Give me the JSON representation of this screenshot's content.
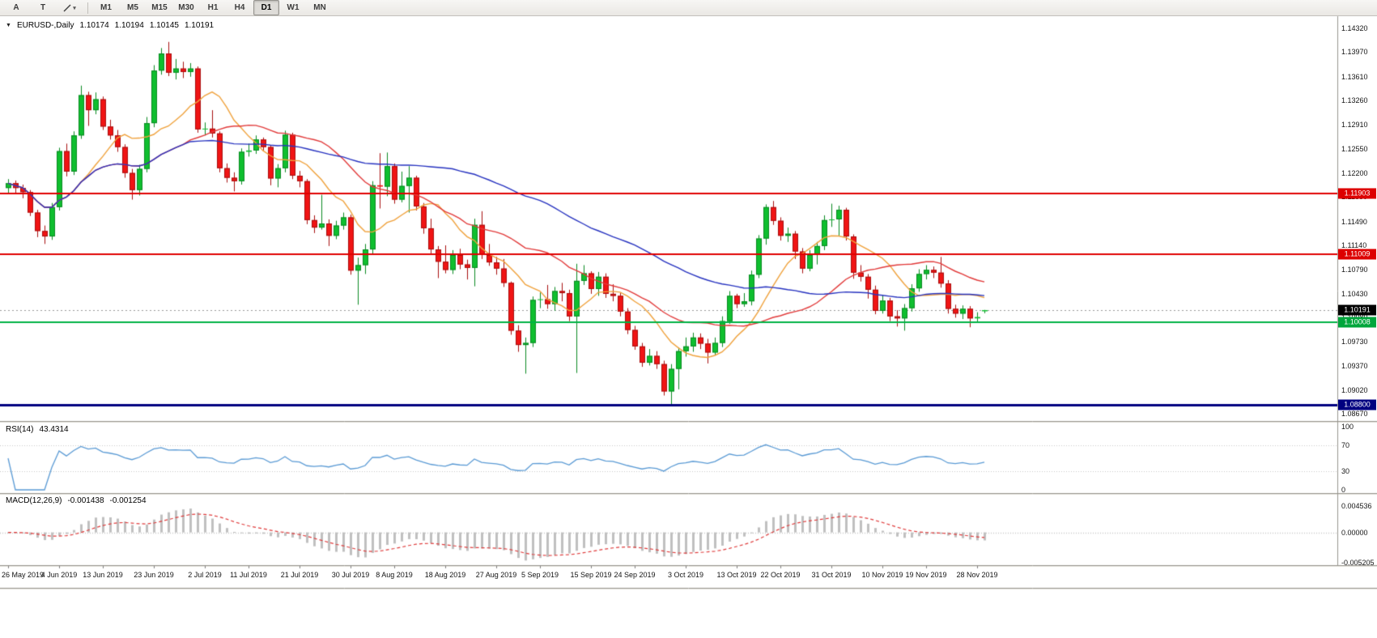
{
  "toolbar": {
    "tools": [
      {
        "name": "cursor-tool",
        "label": "A"
      },
      {
        "name": "text-tool",
        "label": "T"
      },
      {
        "name": "objects-tool",
        "icon": "trendline-icon",
        "dropdown": true
      }
    ],
    "timeframes": [
      "M1",
      "M5",
      "M15",
      "M30",
      "H1",
      "H4",
      "D1",
      "W1",
      "MN"
    ],
    "active_timeframe": "D1"
  },
  "icons": {
    "symbol_marker": "▼",
    "dropdown_arrow": "▾"
  },
  "chart": {
    "title": {
      "symbol": "EURUSD-,Daily",
      "open": "1.10174",
      "high": "1.10194",
      "low": "1.10145",
      "close": "1.10191"
    },
    "price_axis": [
      "1.14320",
      "1.13970",
      "1.13610",
      "1.13260",
      "1.12910",
      "1.12550",
      "1.12200",
      "1.11850",
      "1.11490",
      "1.11140",
      "1.10790",
      "1.10430",
      "1.10080",
      "1.09730",
      "1.09370",
      "1.09020",
      "1.08670"
    ],
    "hlines": [
      {
        "price": 1.11903,
        "label": "1.11903",
        "color": "#e00000",
        "badge": "#dd0000",
        "width": 2
      },
      {
        "price": 1.11009,
        "label": "1.11009",
        "color": "#e00000",
        "badge": "#dd0000",
        "width": 2
      },
      {
        "price": 1.10008,
        "label": "1.10008",
        "color": "#00b244",
        "badge": "#00a63c",
        "width": 2
      },
      {
        "price": 1.088,
        "label": "1.08800",
        "color": "#000080",
        "badge": "#000080",
        "width": 3
      }
    ],
    "current_price": {
      "price": 1.10191,
      "label": "1.10191",
      "badge": "#000000",
      "line_color": "#9a9a9a"
    }
  },
  "chart_data": {
    "type": "candlestick",
    "symbol": "EURUSD",
    "period": "Daily",
    "ylim": [
      1.0859,
      1.14414
    ],
    "bull_color": "#0fbf2f",
    "bear_color": "#f01414",
    "moving_averages": [
      {
        "name": "ma-fast",
        "type": "sma",
        "period": 10,
        "color": "#f0a23c"
      },
      {
        "name": "ma-medium",
        "type": "sma",
        "period": 25,
        "color": "#e23b3b"
      },
      {
        "name": "ma-slow",
        "type": "sma",
        "period": 55,
        "color": "#2733c0"
      }
    ],
    "candles": [
      [
        1.1198,
        1.1211,
        1.1189,
        1.1205
      ],
      [
        1.1205,
        1.1209,
        1.1189,
        1.1198
      ],
      [
        1.1198,
        1.1203,
        1.1183,
        1.1192
      ],
      [
        1.1192,
        1.1195,
        1.1157,
        1.1162
      ],
      [
        1.1162,
        1.1166,
        1.1126,
        1.1135
      ],
      [
        1.1135,
        1.1143,
        1.1116,
        1.1127
      ],
      [
        1.1127,
        1.1176,
        1.1122,
        1.117
      ],
      [
        1.117,
        1.1257,
        1.1165,
        1.1252
      ],
      [
        1.1252,
        1.1263,
        1.1215,
        1.1222
      ],
      [
        1.1222,
        1.1281,
        1.1217,
        1.1275
      ],
      [
        1.1275,
        1.1348,
        1.127,
        1.1334
      ],
      [
        1.1334,
        1.1339,
        1.1289,
        1.1312
      ],
      [
        1.1312,
        1.1338,
        1.1306,
        1.1328
      ],
      [
        1.1328,
        1.1332,
        1.1283,
        1.1288
      ],
      [
        1.1288,
        1.1298,
        1.1269,
        1.1275
      ],
      [
        1.1275,
        1.1283,
        1.1251,
        1.1258
      ],
      [
        1.1258,
        1.1262,
        1.1213,
        1.122
      ],
      [
        1.122,
        1.1226,
        1.1181,
        1.1195
      ],
      [
        1.1195,
        1.1232,
        1.1187,
        1.1226
      ],
      [
        1.1226,
        1.1302,
        1.1221,
        1.1293
      ],
      [
        1.1293,
        1.1378,
        1.1287,
        1.137
      ],
      [
        1.137,
        1.1403,
        1.1364,
        1.1395
      ],
      [
        1.1395,
        1.1412,
        1.1362,
        1.1367
      ],
      [
        1.1367,
        1.1387,
        1.1357,
        1.1373
      ],
      [
        1.1373,
        1.1383,
        1.1359,
        1.1368
      ],
      [
        1.1368,
        1.1381,
        1.1361,
        1.1373
      ],
      [
        1.1373,
        1.1376,
        1.1279,
        1.1284
      ],
      [
        1.1284,
        1.1294,
        1.1275,
        1.1285
      ],
      [
        1.1285,
        1.1312,
        1.1272,
        1.1278
      ],
      [
        1.1278,
        1.1281,
        1.1221,
        1.1227
      ],
      [
        1.1227,
        1.1234,
        1.1206,
        1.1213
      ],
      [
        1.1213,
        1.1221,
        1.1193,
        1.1208
      ],
      [
        1.1208,
        1.1256,
        1.1203,
        1.1251
      ],
      [
        1.1251,
        1.1263,
        1.1244,
        1.1253
      ],
      [
        1.1253,
        1.1275,
        1.1248,
        1.1269
      ],
      [
        1.1269,
        1.1272,
        1.1253,
        1.1258
      ],
      [
        1.1258,
        1.1261,
        1.1202,
        1.1212
      ],
      [
        1.1212,
        1.1233,
        1.1199,
        1.1227
      ],
      [
        1.1227,
        1.1282,
        1.1221,
        1.1276
      ],
      [
        1.1276,
        1.1279,
        1.1211,
        1.1216
      ],
      [
        1.1216,
        1.1223,
        1.1199,
        1.1208
      ],
      [
        1.1208,
        1.1211,
        1.1145,
        1.1151
      ],
      [
        1.1151,
        1.1158,
        1.1132,
        1.114
      ],
      [
        1.114,
        1.1188,
        1.1137,
        1.1146
      ],
      [
        1.1146,
        1.1152,
        1.1113,
        1.1128
      ],
      [
        1.1128,
        1.115,
        1.1123,
        1.1143
      ],
      [
        1.1143,
        1.1162,
        1.1137,
        1.1155
      ],
      [
        1.1155,
        1.1159,
        1.1071,
        1.1077
      ],
      [
        1.1077,
        1.1096,
        1.1027,
        1.1085
      ],
      [
        1.1085,
        1.1116,
        1.1072,
        1.1108
      ],
      [
        1.1108,
        1.1208,
        1.1102,
        1.1202
      ],
      [
        1.1202,
        1.1249,
        1.1168,
        1.12
      ],
      [
        1.12,
        1.125,
        1.1186,
        1.123
      ],
      [
        1.123,
        1.1234,
        1.1175,
        1.1181
      ],
      [
        1.1181,
        1.1222,
        1.1177,
        1.1201
      ],
      [
        1.1201,
        1.123,
        1.1162,
        1.1213
      ],
      [
        1.1213,
        1.1216,
        1.1165,
        1.1171
      ],
      [
        1.1171,
        1.1176,
        1.1131,
        1.1139
      ],
      [
        1.1139,
        1.1153,
        1.1102,
        1.1108
      ],
      [
        1.1108,
        1.1113,
        1.1066,
        1.109
      ],
      [
        1.109,
        1.1114,
        1.1073,
        1.1078
      ],
      [
        1.1078,
        1.1107,
        1.1072,
        1.11
      ],
      [
        1.11,
        1.1109,
        1.1079,
        1.1086
      ],
      [
        1.1086,
        1.1093,
        1.1064,
        1.1081
      ],
      [
        1.1081,
        1.1153,
        1.1054,
        1.1144
      ],
      [
        1.1144,
        1.1164,
        1.1094,
        1.11
      ],
      [
        1.11,
        1.1116,
        1.1084,
        1.1089
      ],
      [
        1.1089,
        1.1097,
        1.1071,
        1.108
      ],
      [
        1.108,
        1.1094,
        1.1053,
        1.1059
      ],
      [
        1.1059,
        1.1061,
        1.0983,
        1.0989
      ],
      [
        1.0989,
        1.0997,
        1.0958,
        1.0968
      ],
      [
        1.0968,
        1.0979,
        1.0926,
        1.0971
      ],
      [
        1.0971,
        1.1039,
        1.0965,
        1.1034
      ],
      [
        1.1034,
        1.1045,
        1.1022,
        1.1035
      ],
      [
        1.1035,
        1.1056,
        1.1021,
        1.1028
      ],
      [
        1.1028,
        1.1053,
        1.1018,
        1.1047
      ],
      [
        1.1047,
        1.1059,
        1.1032,
        1.1044
      ],
      [
        1.1044,
        1.1049,
        1.1003,
        1.101
      ],
      [
        1.101,
        1.1087,
        1.0927,
        1.1062
      ],
      [
        1.1062,
        1.1085,
        1.1056,
        1.1073
      ],
      [
        1.1073,
        1.1076,
        1.1043,
        1.105
      ],
      [
        1.105,
        1.1075,
        1.104,
        1.1068
      ],
      [
        1.1068,
        1.1073,
        1.1037,
        1.1043
      ],
      [
        1.1043,
        1.1057,
        1.1032,
        1.104
      ],
      [
        1.104,
        1.1044,
        1.101,
        1.1017
      ],
      [
        1.1017,
        1.1022,
        1.0984,
        1.099
      ],
      [
        1.099,
        1.0996,
        1.0961,
        1.0966
      ],
      [
        1.0966,
        1.0971,
        1.0936,
        1.0942
      ],
      [
        1.0942,
        1.0962,
        1.0938,
        1.0952
      ],
      [
        1.0952,
        1.0959,
        1.0933,
        1.094
      ],
      [
        1.094,
        1.0945,
        1.0894,
        1.09
      ],
      [
        1.09,
        1.094,
        1.0879,
        1.0933
      ],
      [
        1.0933,
        1.0964,
        1.0903,
        1.0959
      ],
      [
        1.0959,
        1.0979,
        1.0951,
        1.0966
      ],
      [
        1.0966,
        1.0986,
        1.0958,
        1.0979
      ],
      [
        1.0979,
        1.0985,
        1.0962,
        1.097
      ],
      [
        1.097,
        1.0977,
        1.0941,
        1.0957
      ],
      [
        1.0957,
        1.0979,
        1.0953,
        1.0971
      ],
      [
        1.0971,
        1.101,
        1.0965,
        1.1003
      ],
      [
        1.1003,
        1.1047,
        1.0999,
        1.104
      ],
      [
        1.104,
        1.1043,
        1.1022,
        1.1028
      ],
      [
        1.1028,
        1.1044,
        1.1024,
        1.1032
      ],
      [
        1.1032,
        1.1077,
        1.1026,
        1.1071
      ],
      [
        1.1071,
        1.1129,
        1.1066,
        1.1124
      ],
      [
        1.1124,
        1.1174,
        1.1115,
        1.117
      ],
      [
        1.117,
        1.1179,
        1.1144,
        1.115
      ],
      [
        1.115,
        1.1155,
        1.1121,
        1.1128
      ],
      [
        1.1128,
        1.114,
        1.1119,
        1.1131
      ],
      [
        1.1131,
        1.1135,
        1.1094,
        1.1105
      ],
      [
        1.1105,
        1.111,
        1.1073,
        1.108
      ],
      [
        1.108,
        1.1107,
        1.1076,
        1.11
      ],
      [
        1.11,
        1.1119,
        1.1086,
        1.1113
      ],
      [
        1.1113,
        1.1158,
        1.1107,
        1.1151
      ],
      [
        1.1151,
        1.1175,
        1.1141,
        1.1152
      ],
      [
        1.1152,
        1.1172,
        1.1128,
        1.1166
      ],
      [
        1.1166,
        1.1169,
        1.1121,
        1.1127
      ],
      [
        1.1127,
        1.113,
        1.1065,
        1.1074
      ],
      [
        1.1074,
        1.1085,
        1.1061,
        1.1068
      ],
      [
        1.1068,
        1.1072,
        1.1036,
        1.1049
      ],
      [
        1.1049,
        1.1055,
        1.1013,
        1.1018
      ],
      [
        1.1018,
        1.1041,
        1.1014,
        1.1033
      ],
      [
        1.1033,
        1.1037,
        1.1003,
        1.101
      ],
      [
        1.101,
        1.1019,
        1.0995,
        1.1007
      ],
      [
        1.1007,
        1.1028,
        1.0989,
        1.1022
      ],
      [
        1.1022,
        1.1057,
        1.1017,
        1.1051
      ],
      [
        1.1051,
        1.1079,
        1.1046,
        1.1072
      ],
      [
        1.1072,
        1.1085,
        1.1064,
        1.1078
      ],
      [
        1.1078,
        1.1083,
        1.1066,
        1.1074
      ],
      [
        1.1074,
        1.1097,
        1.1052,
        1.1058
      ],
      [
        1.1058,
        1.1063,
        1.1014,
        1.1021
      ],
      [
        1.1021,
        1.1027,
        1.1008,
        1.1014
      ],
      [
        1.1014,
        1.1026,
        1.1006,
        1.1021
      ],
      [
        1.1021,
        1.1025,
        1.0994,
        1.1007
      ],
      [
        1.1007,
        1.1016,
        1.1001,
        1.1009
      ],
      [
        1.10174,
        1.10194,
        1.10145,
        1.10191
      ]
    ],
    "x_ticks": [
      {
        "i": 0,
        "label": "26 May 2019"
      },
      {
        "i": 7,
        "label": "4 Jun 2019"
      },
      {
        "i": 13,
        "label": "13 Jun 2019"
      },
      {
        "i": 20,
        "label": "23 Jun 2019"
      },
      {
        "i": 27,
        "label": "2 Jul 2019"
      },
      {
        "i": 33,
        "label": "11 Jul 2019"
      },
      {
        "i": 40,
        "label": "21 Jul 2019"
      },
      {
        "i": 47,
        "label": "30 Jul 2019"
      },
      {
        "i": 53,
        "label": "8 Aug 2019"
      },
      {
        "i": 60,
        "label": "18 Aug 2019"
      },
      {
        "i": 67,
        "label": "27 Aug 2019"
      },
      {
        "i": 73,
        "label": "5 Sep 2019"
      },
      {
        "i": 80,
        "label": "15 Sep 2019"
      },
      {
        "i": 86,
        "label": "24 Sep 2019"
      },
      {
        "i": 93,
        "label": "3 Oct 2019"
      },
      {
        "i": 100,
        "label": "13 Oct 2019"
      },
      {
        "i": 106,
        "label": "22 Oct 2019"
      },
      {
        "i": 113,
        "label": "31 Oct 2019"
      },
      {
        "i": 120,
        "label": "10 Nov 2019"
      },
      {
        "i": 126,
        "label": "19 Nov 2019"
      },
      {
        "i": 133,
        "label": "28 Nov 2019"
      }
    ]
  },
  "rsi": {
    "title": "RSI(14)",
    "value": "43.4314",
    "period": 14,
    "color": "#5b9bd5",
    "axis_labels": [
      "100",
      "70",
      "30",
      "0"
    ],
    "levels": [
      70,
      30
    ]
  },
  "macd": {
    "title": "MACD(12,26,9)",
    "value_main": "-0.001438",
    "value_signal": "-0.001254",
    "fast": 12,
    "slow": 26,
    "signal": 9,
    "axis_labels": [
      "0.004536",
      "0.00000",
      "-0.005205"
    ],
    "ylim": [
      -0.005205,
      0.004536
    ],
    "histogram_color": "#c0c0c0",
    "signal_color": "#e03c3c"
  }
}
